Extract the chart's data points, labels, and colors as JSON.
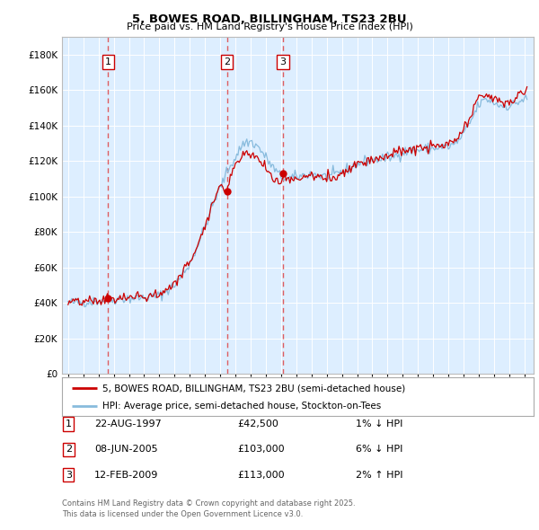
{
  "title": "5, BOWES ROAD, BILLINGHAM, TS23 2BU",
  "subtitle": "Price paid vs. HM Land Registry's House Price Index (HPI)",
  "legend_line1": "5, BOWES ROAD, BILLINGHAM, TS23 2BU (semi-detached house)",
  "legend_line2": "HPI: Average price, semi-detached house, Stockton-on-Tees",
  "transactions": [
    {
      "num": 1,
      "date": "22-AUG-1997",
      "price": 42500,
      "year": 1997.64,
      "hpi_rel": "1% ↓ HPI"
    },
    {
      "num": 2,
      "date": "08-JUN-2005",
      "price": 103000,
      "year": 2005.44,
      "hpi_rel": "6% ↓ HPI"
    },
    {
      "num": 3,
      "date": "12-FEB-2009",
      "price": 113000,
      "year": 2009.12,
      "hpi_rel": "2% ↑ HPI"
    }
  ],
  "ylim": [
    0,
    190000
  ],
  "yticks": [
    0,
    20000,
    40000,
    60000,
    80000,
    100000,
    120000,
    140000,
    160000,
    180000
  ],
  "background_color": "#ddeeff",
  "line_color_red": "#cc0000",
  "line_color_blue": "#88bbdd",
  "dot_color": "#cc0000",
  "vline_color": "#dd4444",
  "box_edge_color": "#cc0000",
  "footnote": "Contains HM Land Registry data © Crown copyright and database right 2025.\nThis data is licensed under the Open Government Licence v3.0."
}
